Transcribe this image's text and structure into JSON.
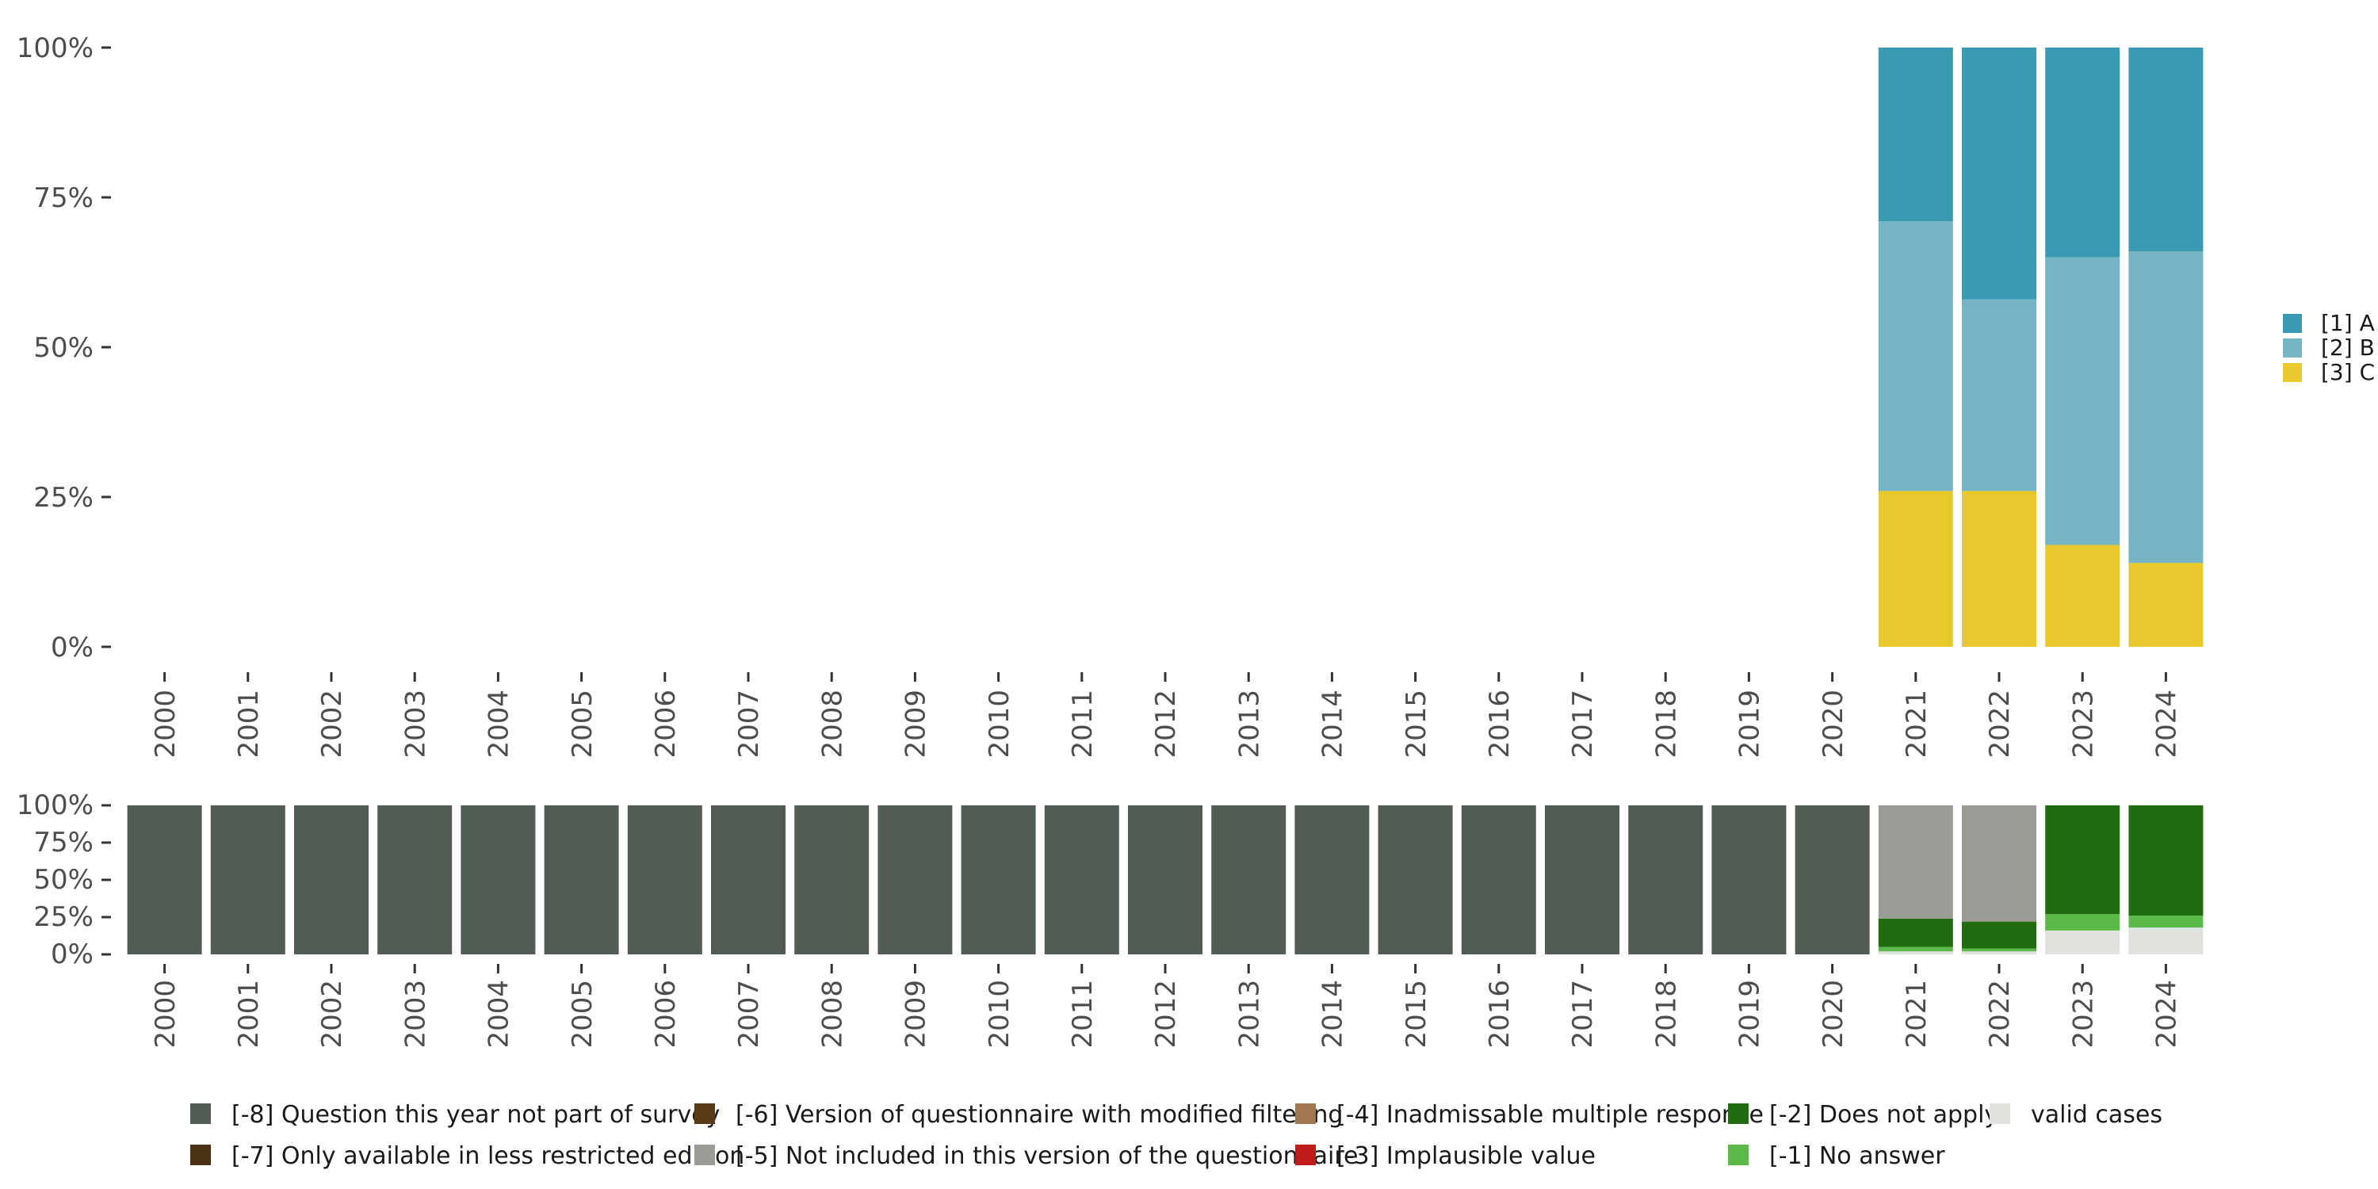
{
  "chart_data": [
    {
      "type": "bar",
      "stacked": true,
      "percent": true,
      "categories": [
        "2000",
        "2001",
        "2002",
        "2003",
        "2004",
        "2005",
        "2006",
        "2007",
        "2008",
        "2009",
        "2010",
        "2011",
        "2012",
        "2013",
        "2014",
        "2015",
        "2016",
        "2017",
        "2018",
        "2019",
        "2020",
        "2021",
        "2022",
        "2023",
        "2024"
      ],
      "y_ticks": [
        "0%",
        "25%",
        "50%",
        "75%",
        "100%"
      ],
      "ylim": [
        0,
        100
      ],
      "legend_position": "right",
      "series": [
        {
          "name": "[3] C",
          "color": "#E8C92B",
          "values": [
            null,
            null,
            null,
            null,
            null,
            null,
            null,
            null,
            null,
            null,
            null,
            null,
            null,
            null,
            null,
            null,
            null,
            null,
            null,
            null,
            null,
            26,
            26,
            17,
            14
          ]
        },
        {
          "name": "[2] B",
          "color": "#76B5C5",
          "values": [
            null,
            null,
            null,
            null,
            null,
            null,
            null,
            null,
            null,
            null,
            null,
            null,
            null,
            null,
            null,
            null,
            null,
            null,
            null,
            null,
            null,
            45,
            32,
            48,
            52
          ]
        },
        {
          "name": "[1] A",
          "color": "#3A9AB2",
          "values": [
            null,
            null,
            null,
            null,
            null,
            null,
            null,
            null,
            null,
            null,
            null,
            null,
            null,
            null,
            null,
            null,
            null,
            null,
            null,
            null,
            null,
            29,
            42,
            35,
            34
          ]
        }
      ],
      "legend": [
        {
          "name": "[1] A",
          "color": "#3A9AB2"
        },
        {
          "name": "[2] B",
          "color": "#76B5C5"
        },
        {
          "name": "[3] C",
          "color": "#E8C92B"
        }
      ]
    },
    {
      "type": "bar",
      "stacked": true,
      "percent": true,
      "categories": [
        "2000",
        "2001",
        "2002",
        "2003",
        "2004",
        "2005",
        "2006",
        "2007",
        "2008",
        "2009",
        "2010",
        "2011",
        "2012",
        "2013",
        "2014",
        "2015",
        "2016",
        "2017",
        "2018",
        "2019",
        "2020",
        "2021",
        "2022",
        "2023",
        "2024"
      ],
      "y_ticks": [
        "0%",
        "25%",
        "50%",
        "75%",
        "100%"
      ],
      "ylim": [
        0,
        100
      ],
      "legend_position": "bottom",
      "series": [
        {
          "name": "valid cases",
          "color": "#E0E2DD",
          "values": [
            0,
            0,
            0,
            0,
            0,
            0,
            0,
            0,
            0,
            0,
            0,
            0,
            0,
            0,
            0,
            0,
            0,
            0,
            0,
            0,
            0,
            2,
            2,
            16,
            18
          ]
        },
        {
          "name": "[-1] No answer",
          "color": "#5BBA47",
          "values": [
            0,
            0,
            0,
            0,
            0,
            0,
            0,
            0,
            0,
            0,
            0,
            0,
            0,
            0,
            0,
            0,
            0,
            0,
            0,
            0,
            0,
            3,
            2,
            11,
            8
          ]
        },
        {
          "name": "[-2] Does not apply",
          "color": "#216B10",
          "values": [
            0,
            0,
            0,
            0,
            0,
            0,
            0,
            0,
            0,
            0,
            0,
            0,
            0,
            0,
            0,
            0,
            0,
            0,
            0,
            0,
            0,
            19,
            18,
            73,
            74
          ]
        },
        {
          "name": "[-5] Not included in this version of the questionnaire",
          "color": "#999B95",
          "values": [
            0,
            0,
            0,
            0,
            0,
            0,
            0,
            0,
            0,
            0,
            0,
            0,
            0,
            0,
            0,
            0,
            0,
            0,
            0,
            0,
            0,
            76,
            78,
            0,
            0
          ]
        },
        {
          "name": "[-8] Question this year not part of survey",
          "color": "#535B55",
          "values": [
            100,
            100,
            100,
            100,
            100,
            100,
            100,
            100,
            100,
            100,
            100,
            100,
            100,
            100,
            100,
            100,
            100,
            100,
            100,
            100,
            100,
            0,
            0,
            0,
            0
          ]
        }
      ],
      "legend": [
        {
          "name": "[-8] Question this year not part of survey",
          "color": "#535B55"
        },
        {
          "name": "[-7] Only available in less restricted edition",
          "color": "#4A3014"
        },
        {
          "name": "[-6] Version of questionnaire with modified filtering",
          "color": "#5A3A16"
        },
        {
          "name": "[-5] Not included in this version of the questionnaire",
          "color": "#999B95"
        },
        {
          "name": "[-4] Inadmissable multiple response",
          "color": "#A07850"
        },
        {
          "name": "[-3] Implausible value",
          "color": "#C01B1B"
        },
        {
          "name": "[-2] Does not apply",
          "color": "#216B10"
        },
        {
          "name": "[-1] No answer",
          "color": "#5BBA47"
        },
        {
          "name": "valid cases",
          "color": "#E0E2DD"
        }
      ]
    }
  ]
}
